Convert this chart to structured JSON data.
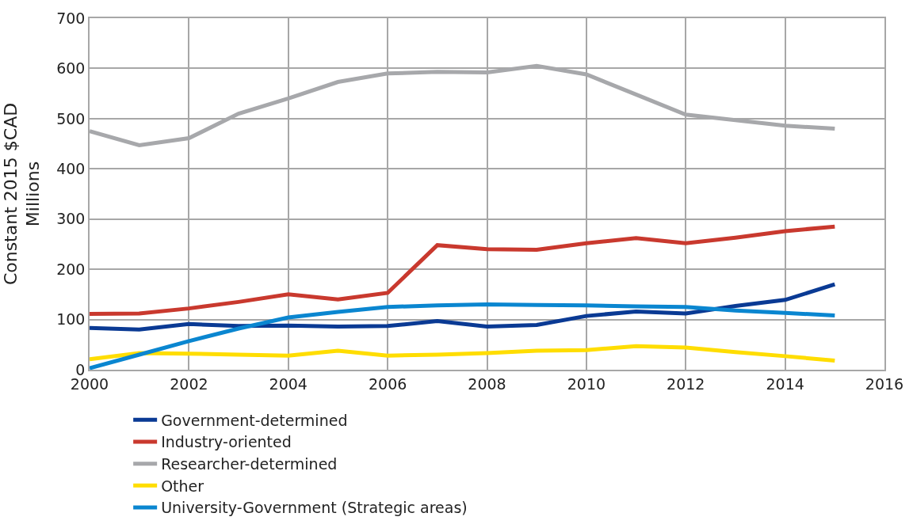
{
  "chart_data": {
    "type": "line",
    "ylabel": "Constant 2015 $CAD\nMillions",
    "x": [
      2000,
      2001,
      2002,
      2003,
      2004,
      2005,
      2006,
      2007,
      2008,
      2009,
      2010,
      2011,
      2012,
      2013,
      2014,
      2015
    ],
    "series": [
      {
        "name": "Government-determined",
        "color": "#0a3a94",
        "values": [
          83,
          80,
          91,
          87,
          88,
          86,
          87,
          97,
          86,
          89,
          107,
          116,
          112,
          127,
          139,
          170
        ]
      },
      {
        "name": "Industry-oriented",
        "color": "#c9392e",
        "values": [
          111,
          112,
          122,
          135,
          150,
          140,
          153,
          248,
          240,
          239,
          252,
          262,
          252,
          263,
          276,
          285
        ]
      },
      {
        "name": "Researcher-determined",
        "color": "#a7a8ab",
        "values": [
          475,
          447,
          461,
          510,
          540,
          573,
          590,
          593,
          592,
          605,
          588,
          548,
          508,
          497,
          486,
          480
        ]
      },
      {
        "name": "Other",
        "color": "#ffdd00",
        "values": [
          21,
          33,
          32,
          30,
          28,
          38,
          28,
          30,
          33,
          38,
          39,
          47,
          44,
          35,
          27,
          18
        ]
      },
      {
        "name": "University-Government (Strategic areas)",
        "color": "#0a86d0",
        "values": [
          3,
          30,
          57,
          82,
          104,
          115,
          125,
          128,
          130,
          129,
          128,
          126,
          125,
          118,
          113,
          108
        ]
      }
    ],
    "xlim": [
      2000,
      2016
    ],
    "xticks": [
      2000,
      2002,
      2004,
      2006,
      2008,
      2010,
      2012,
      2014,
      2016
    ],
    "ylim": [
      0,
      700
    ],
    "yticks": [
      0,
      100,
      200,
      300,
      400,
      500,
      600,
      700
    ],
    "grid": true,
    "legend": "bottom",
    "marker": "none",
    "line_style": "solid"
  }
}
